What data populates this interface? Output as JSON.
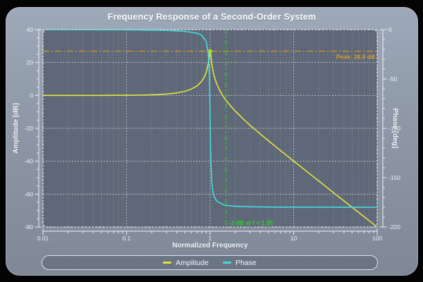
{
  "window": {
    "title": "Frequency Response of a Second-Order System"
  },
  "axes": {
    "x": {
      "label": "Normalized Frequency",
      "scale": "log",
      "min": 0.01,
      "max": 100,
      "tick_values": [
        0.01,
        0.1,
        1,
        10,
        100
      ],
      "tick_labels": [
        "0.01",
        "0.1",
        "1",
        "10",
        "100"
      ]
    },
    "y_left": {
      "label": "Amplitude [dB]",
      "min": -80,
      "max": 40,
      "tick_values": [
        40,
        20,
        0,
        -20,
        -40,
        -60,
        -80
      ],
      "tick_labels": [
        "40",
        "20",
        "0",
        "-20",
        "-40",
        "-60",
        "-80"
      ],
      "minor_step": 5
    },
    "y_right": {
      "label": "Phase [deg]",
      "min": -200,
      "max": 0,
      "tick_values": [
        0,
        -50,
        -100,
        -150,
        -200
      ],
      "tick_labels": [
        "0",
        "-50",
        "-100",
        "-150",
        "-200"
      ],
      "minor_step": 10
    }
  },
  "legend": {
    "items": [
      {
        "label": "Amplitude",
        "color": "#e4e43c"
      },
      {
        "label": "Phase",
        "color": "#3fdede"
      }
    ]
  },
  "colors": {
    "plot_background": "#5f6878",
    "grid_major": "rgba(255,255,255,0.75)",
    "grid_minor": "rgba(255,255,255,0.28)",
    "frame": "#f2f4f7",
    "axis": "#eef1f5",
    "tick_text": "#eef2f6"
  },
  "chart_data": {
    "type": "line",
    "title": "Frequency Response of a Second-Order System",
    "xlabel": "Normalized Frequency",
    "x_scale": "log",
    "x_range": [
      0.01,
      100
    ],
    "ylabel_left": "Amplitude [dB]",
    "ylim_left": [
      -80,
      40
    ],
    "ylabel_right": "Phase [deg]",
    "ylim_right": [
      -200,
      0
    ],
    "grid": true,
    "legend_position": "bottom",
    "series": [
      {
        "name": "Amplitude",
        "axis": "left",
        "color": "#e4e43c",
        "x": [
          0.01,
          0.02,
          0.05,
          0.1,
          0.15,
          0.2,
          0.3,
          0.4,
          0.5,
          0.6,
          0.7,
          0.8,
          0.85,
          0.9,
          0.93,
          0.95,
          0.97,
          0.98,
          0.99,
          1.0,
          1.01,
          1.02,
          1.04,
          1.06,
          1.1,
          1.15,
          1.2,
          1.3,
          1.4,
          1.55,
          1.7,
          2.0,
          2.5,
          3.0,
          4.0,
          5.0,
          7.0,
          10,
          15,
          20,
          30,
          50,
          70,
          100
        ],
        "y": [
          0.0,
          0.0,
          0.0,
          0.1,
          0.2,
          0.4,
          0.8,
          1.5,
          2.5,
          3.9,
          5.8,
          8.8,
          11.1,
          14.2,
          17.0,
          19.4,
          22.7,
          24.5,
          26.2,
          26.9,
          26.1,
          24.3,
          20.5,
          17.6,
          13.3,
          9.7,
          7.1,
          3.2,
          0.3,
          -3.0,
          -5.5,
          -9.5,
          -14.4,
          -18.1,
          -23.5,
          -27.6,
          -33.6,
          -39.9,
          -47.0,
          -52.0,
          -59.1,
          -68.0,
          -73.8,
          -80.0
        ]
      },
      {
        "name": "Phase",
        "axis": "right",
        "color": "#3fdede",
        "x": [
          0.01,
          0.1,
          0.3,
          0.5,
          0.7,
          0.8,
          0.9,
          0.95,
          0.97,
          0.98,
          0.99,
          1.0,
          1.01,
          1.02,
          1.04,
          1.06,
          1.1,
          1.2,
          1.5,
          2.0,
          3.0,
          5.0,
          10,
          100
        ],
        "y": [
          0.0,
          -0.2,
          -0.8,
          -1.7,
          -3.6,
          -5.8,
          -12.2,
          -23.9,
          -36.7,
          -48.3,
          -63.6,
          -90.0,
          -116.4,
          -131.5,
          -149.8,
          -159.2,
          -167.7,
          -173.9,
          -177.9,
          -179.0,
          -179.5,
          -179.8,
          -179.9,
          -180.0
        ]
      }
    ],
    "annotations": [
      {
        "type": "hline",
        "axis": "left",
        "y": 26.9,
        "label": "Peak: 26.9 dB",
        "color": "#dd9b22",
        "style": "dash-dot"
      },
      {
        "type": "vline",
        "x": 1.55,
        "label": "-3 dB at f = 1.55",
        "color": "#2bd42b",
        "style": "dash-dot"
      },
      {
        "type": "point",
        "x": 1.0,
        "axis": "left",
        "y": 26.9,
        "color": "#a8dc32"
      }
    ]
  }
}
